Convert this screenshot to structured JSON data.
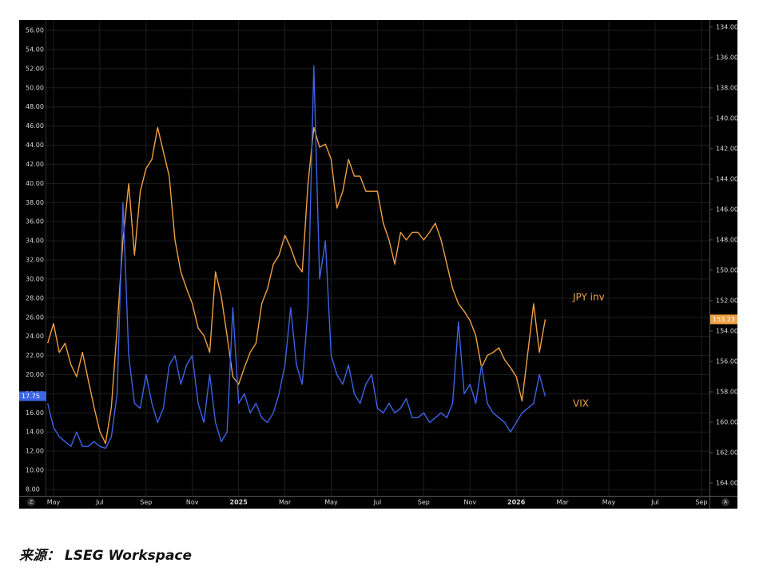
{
  "chart_data": {
    "type": "line",
    "x": [
      3.75,
      4,
      4.25,
      4.5,
      4.75,
      5,
      5.25,
      5.5,
      5.75,
      6,
      6.25,
      6.5,
      6.75,
      7,
      7.25,
      7.5,
      7.75,
      8,
      8.25,
      8.5,
      8.75,
      9,
      9.25,
      9.5,
      9.75,
      10,
      10.25,
      10.5,
      10.75,
      11,
      11.25,
      11.5,
      11.75,
      12,
      12.25,
      12.5,
      12.75,
      13,
      13.25,
      13.5,
      13.75,
      14,
      14.25,
      14.5,
      14.75,
      15,
      15.25,
      15.5,
      15.75,
      16,
      16.25,
      16.5,
      16.75,
      17,
      17.25,
      17.5,
      17.75,
      18,
      18.25,
      18.5,
      18.75,
      19,
      19.25,
      19.5,
      19.75,
      20,
      20.25,
      20.5,
      20.75,
      21,
      21.25,
      21.5,
      21.75,
      22,
      22.25,
      22.5,
      22.75,
      23,
      23.25,
      23.5,
      23.75,
      24,
      24.25,
      24.5,
      24.75,
      25,
      25.25
    ],
    "series": [
      {
        "name": "JPY inv",
        "color": "#f0a044",
        "axis": "y2",
        "values": [
          154.8,
          153.5,
          155.4,
          154.8,
          156.2,
          157,
          155.4,
          157.2,
          159,
          160.6,
          161.4,
          159,
          153.8,
          148,
          144.3,
          149,
          144.8,
          143.3,
          142.7,
          140.6,
          142.2,
          143.8,
          148,
          150.1,
          151.2,
          152.2,
          153.8,
          154.3,
          155.4,
          150.1,
          151.7,
          154.3,
          157,
          157.5,
          156.4,
          155.4,
          154.8,
          152.2,
          151.2,
          149.6,
          149,
          147.7,
          148.5,
          149.6,
          150.1,
          144.3,
          140.6,
          141.9,
          141.7,
          142.7,
          145.9,
          144.8,
          142.7,
          143.8,
          143.8,
          144.8,
          144.8,
          144.8,
          146.9,
          148,
          149.6,
          147.5,
          148,
          147.5,
          147.5,
          148,
          147.5,
          146.9,
          148,
          149.6,
          151.2,
          152.2,
          152.7,
          153.3,
          154.3,
          156.4,
          155.6,
          155.4,
          155.1,
          155.9,
          156.4,
          157,
          158.6,
          155.4,
          152.2,
          155.4,
          153.23
        ]
      },
      {
        "name": "VIX",
        "color": "#3d63e6",
        "values": [
          17,
          14.5,
          13.5,
          13,
          12.5,
          14,
          12.5,
          12.5,
          13,
          12.5,
          12.3,
          13.5,
          18,
          38,
          22,
          17,
          16.5,
          20,
          17,
          15,
          16.5,
          21,
          22,
          19,
          21,
          22,
          17,
          15,
          20,
          15,
          13,
          14,
          27,
          17,
          18,
          16,
          17,
          15.5,
          15,
          16,
          18,
          21,
          27,
          21,
          19,
          27,
          52.3,
          30,
          34,
          22,
          20,
          19,
          21,
          18,
          17,
          19,
          20,
          16.5,
          16,
          17,
          16,
          16.5,
          17.5,
          15.5,
          15.5,
          16,
          15,
          15.5,
          16,
          15.5,
          17,
          25.5,
          18,
          19,
          17,
          21,
          17,
          16,
          15.5,
          15,
          14,
          15,
          16,
          16.5,
          17,
          20,
          17.75
        ]
      }
    ],
    "xlim": [
      3.69,
      32.35
    ],
    "xticks": [
      {
        "value": 4,
        "label": "May"
      },
      {
        "value": 6,
        "label": "Jul"
      },
      {
        "value": 8,
        "label": "Sep"
      },
      {
        "value": 10,
        "label": "Nov"
      },
      {
        "value": 12,
        "label": "2025"
      },
      {
        "value": 14,
        "label": "Mar"
      },
      {
        "value": 16,
        "label": "May"
      },
      {
        "value": 18,
        "label": "Jul"
      },
      {
        "value": 20,
        "label": "Sep"
      },
      {
        "value": 22,
        "label": "Nov"
      },
      {
        "value": 24,
        "label": "2026"
      },
      {
        "value": 26,
        "label": "Mar"
      },
      {
        "value": 28,
        "label": "May"
      },
      {
        "value": 30,
        "label": "Jul"
      },
      {
        "value": 32,
        "label": "Sep"
      }
    ],
    "ylim": [
      7.33,
      57.09
    ],
    "yticks": [
      {
        "value": 8,
        "label": "8.00"
      },
      {
        "value": 10,
        "label": "10.00"
      },
      {
        "value": 12,
        "label": "12.00"
      },
      {
        "value": 14,
        "label": "14.00"
      },
      {
        "value": 16,
        "label": "16.00"
      },
      {
        "value": 18,
        "label": "18.00"
      },
      {
        "value": 20,
        "label": "20.00"
      },
      {
        "value": 22,
        "label": "22.00"
      },
      {
        "value": 24,
        "label": "24.00"
      },
      {
        "value": 26,
        "label": "26.00"
      },
      {
        "value": 28,
        "label": "28.00"
      },
      {
        "value": 30,
        "label": "30.00"
      },
      {
        "value": 32,
        "label": "32.00"
      },
      {
        "value": 34,
        "label": "34.00"
      },
      {
        "value": 36,
        "label": "36.00"
      },
      {
        "value": 38,
        "label": "38.00"
      },
      {
        "value": 40,
        "label": "40.00"
      },
      {
        "value": 42,
        "label": "42.00"
      },
      {
        "value": 44,
        "label": "44.00"
      },
      {
        "value": 46,
        "label": "46.00"
      },
      {
        "value": 48,
        "label": "48.00"
      },
      {
        "value": 50,
        "label": "50.00"
      },
      {
        "value": 52,
        "label": "52.00"
      },
      {
        "value": 54,
        "label": "54.00"
      },
      {
        "value": 56,
        "label": "56.00"
      }
    ],
    "y2lim": [
      164.84,
      133.53
    ],
    "y2ticks": [
      {
        "value": 134,
        "label": "134.00"
      },
      {
        "value": 136,
        "label": "136.00"
      },
      {
        "value": 138,
        "label": "138.00"
      },
      {
        "value": 140,
        "label": "140.00"
      },
      {
        "value": 142,
        "label": "142.00"
      },
      {
        "value": 144,
        "label": "144.00"
      },
      {
        "value": 146,
        "label": "146.00"
      },
      {
        "value": 148,
        "label": "148.00"
      },
      {
        "value": 150,
        "label": "150.00"
      },
      {
        "value": 152,
        "label": "152.00"
      },
      {
        "value": 154,
        "label": "154.00"
      },
      {
        "value": 156,
        "label": "156.00"
      },
      {
        "value": 158,
        "label": "158.00"
      },
      {
        "value": 160,
        "label": "160.00"
      },
      {
        "value": 162,
        "label": "162.00"
      },
      {
        "value": 164,
        "label": "164.00"
      }
    ],
    "grid": true,
    "scale_buttons": [
      "Z",
      "A"
    ]
  },
  "source": "来源： LSEG Workspace"
}
